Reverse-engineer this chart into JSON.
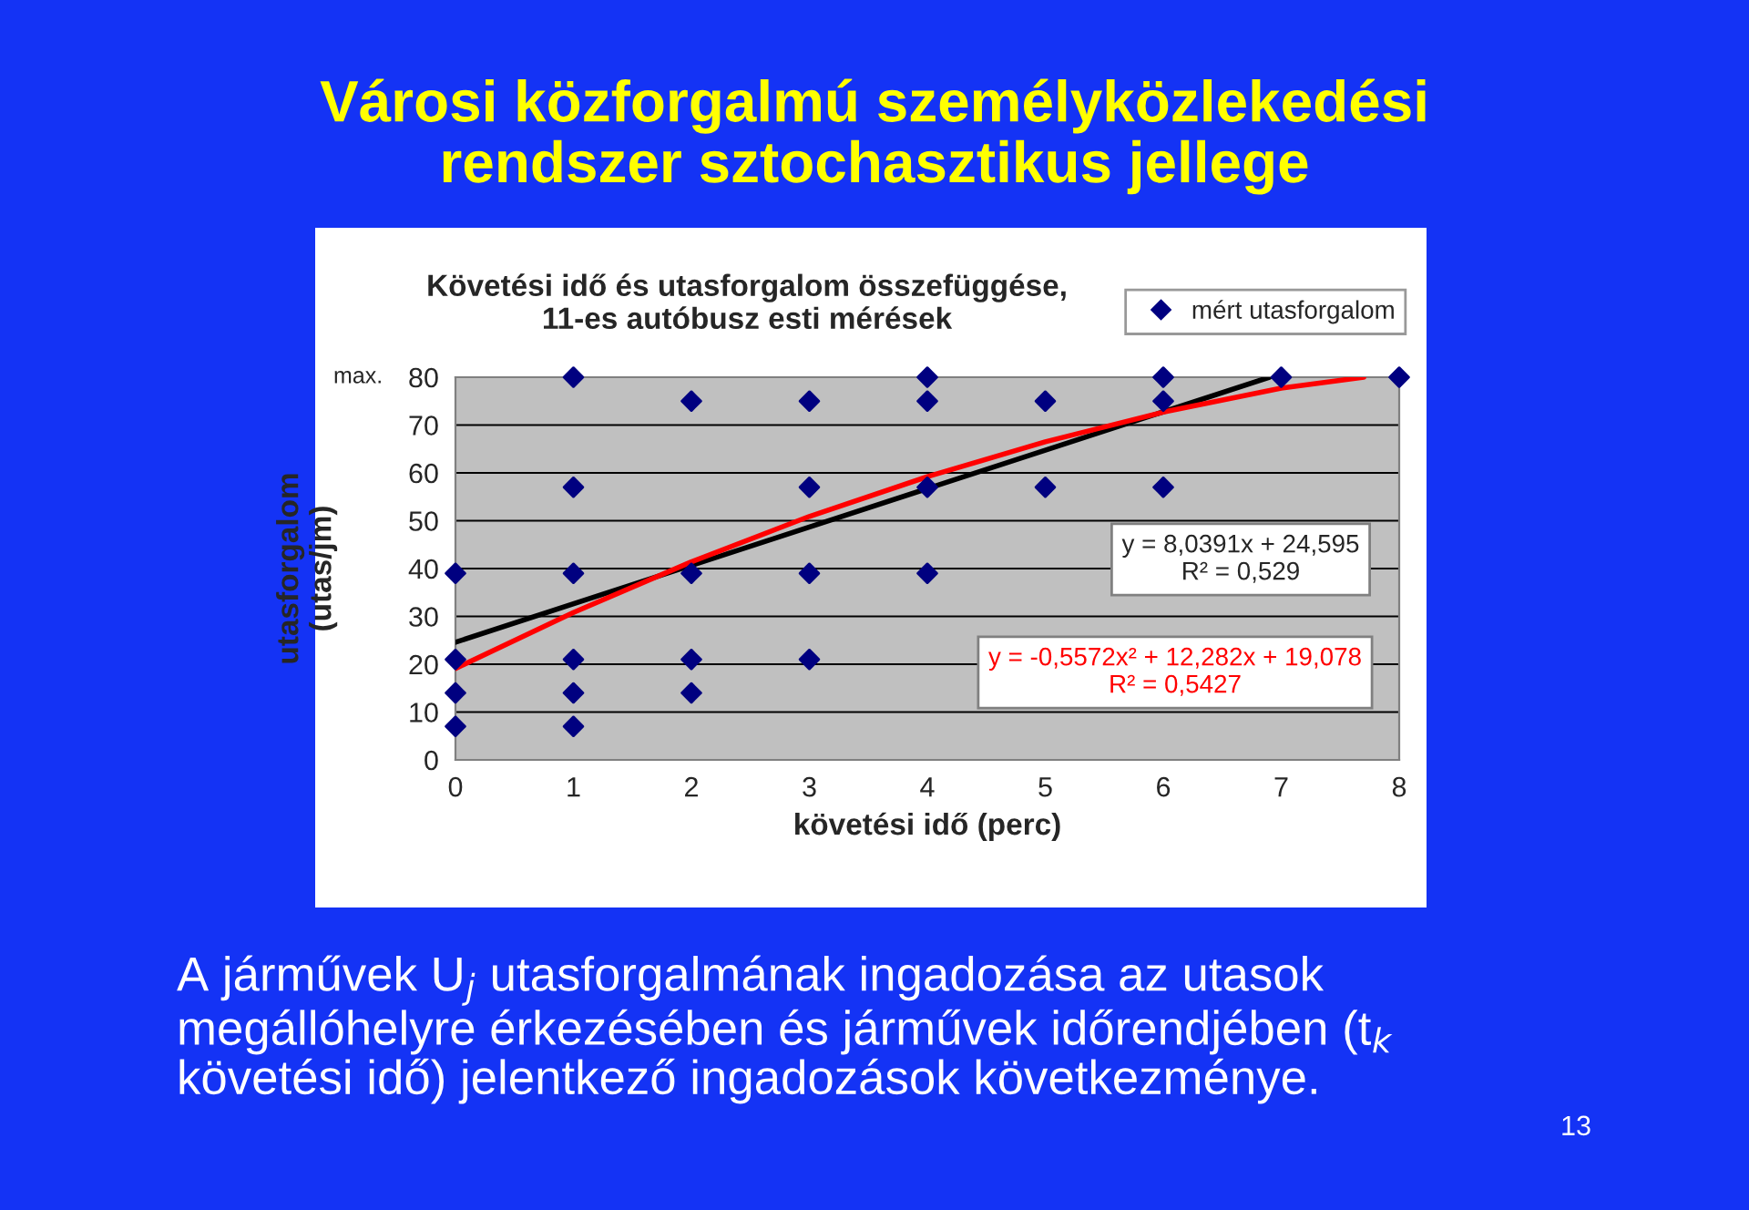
{
  "chart_data": {
    "type": "scatter",
    "title": "Városi közforgalmú személyközlekedési\nrendszer sztochasztikus jellege",
    "subtitle": "Követési idő és utasforgalom összefüggése,\n11-es autóbusz esti mérések",
    "xlabel": "követési idő (perc)",
    "ylabel": "utasforgalom\n(utas/jm)",
    "series": [
      {
        "name": "mért utasforgalom",
        "color": "#000080",
        "marker": "diamond",
        "x": [
          0,
          0,
          0,
          0,
          1,
          1,
          1,
          1,
          1,
          1,
          2,
          2,
          2,
          2,
          3,
          3,
          3,
          3,
          4,
          4,
          4,
          4,
          5,
          5,
          6,
          6,
          6,
          7,
          8
        ],
        "values": [
          39,
          21,
          14,
          7,
          80,
          57,
          39,
          21,
          14,
          7,
          75,
          39,
          21,
          14,
          75,
          57,
          39,
          21,
          80,
          75,
          57,
          39,
          75,
          57,
          80,
          75,
          57,
          80,
          80
        ]
      },
      {
        "type": "line",
        "marker": "none",
        "color": "#000000",
        "x": [
          0,
          6.9
        ],
        "values": [
          24.6,
          80
        ]
      },
      {
        "type": "line",
        "marker": "none",
        "color": "#ff0000",
        "x": [
          0,
          1,
          2,
          3,
          4,
          5,
          6,
          7,
          7.7
        ],
        "values": [
          19.1,
          30.8,
          41.4,
          50.9,
          59.2,
          66.5,
          72.7,
          77.7,
          80
        ]
      }
    ],
    "xlim": [
      0,
      8
    ],
    "xticks": [
      0,
      1,
      2,
      3,
      4,
      5,
      6,
      7,
      8
    ],
    "ylim": [
      0,
      80
    ],
    "yticks": [
      0,
      10,
      20,
      30,
      40,
      50,
      60,
      70,
      80
    ],
    "grid": "y",
    "legend": "top right",
    "line_style": "solid",
    "annotations": [
      "max.",
      "y = 8,0391x + 24,595\nR² = 0,529",
      "y = -0,5572x² + 12,282x + 19,078\nR² = 0,5427",
      "A járművek U$_{j}$ utasforgalmának ingadozása az utasok\nmegállóhelyre érkezésében és járművek időrendjében (t$_{k}$\nkövetési idő) jelentkező ingadozások következménye.",
      "13"
    ]
  }
}
